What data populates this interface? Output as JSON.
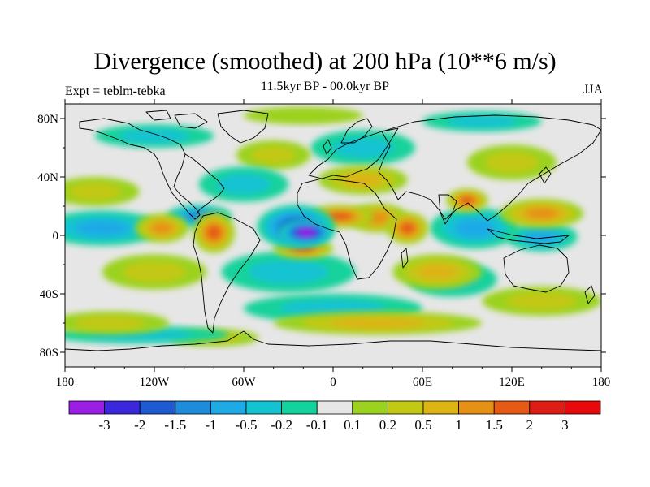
{
  "title": "Divergence (smoothed) at 200 hPa (10**6 m/s)",
  "subtitle_left": "Expt = teblm-tebka",
  "subtitle_center": "11.5kyr BP - 00.0kyr BP",
  "subtitle_right": "JJA",
  "chart_data": {
    "type": "heatmap",
    "title": "Divergence (smoothed) at 200 hPa (10**6 m/s)",
    "x_range": [
      -180,
      180
    ],
    "y_range": [
      -90,
      90
    ],
    "x_ticks": [
      {
        "value": -180,
        "label": "180"
      },
      {
        "value": -120,
        "label": "120W"
      },
      {
        "value": -60,
        "label": "60W"
      },
      {
        "value": 0,
        "label": "0"
      },
      {
        "value": 60,
        "label": "60E"
      },
      {
        "value": 120,
        "label": "120E"
      },
      {
        "value": 180,
        "label": "180"
      }
    ],
    "y_ticks": [
      {
        "value": 80,
        "label": "80N"
      },
      {
        "value": 40,
        "label": "40N"
      },
      {
        "value": 0,
        "label": "0"
      },
      {
        "value": -40,
        "label": "40S"
      },
      {
        "value": -80,
        "label": "80S"
      }
    ],
    "colorbar": {
      "labels": [
        "-3",
        "-2",
        "-1.5",
        "-1",
        "-0.5",
        "-0.2",
        "-0.1",
        "0.1",
        "0.2",
        "0.5",
        "1",
        "1.5",
        "2",
        "3"
      ],
      "colors": [
        "#9a1ee6",
        "#3c28dc",
        "#1e5ad2",
        "#1e8cdc",
        "#1eaae6",
        "#14c3d2",
        "#14d29b",
        "#e6e6e6",
        "#9bd21e",
        "#c3c814",
        "#dcb414",
        "#e69114",
        "#e65a14",
        "#dc1e14",
        "#e60a0a"
      ]
    },
    "features": [
      {
        "lon": -18,
        "lat": 2,
        "value": -3.2,
        "width": 18,
        "height": 9
      },
      {
        "lon": -25,
        "lat": 6,
        "value": -2.2,
        "width": 26,
        "height": 15
      },
      {
        "lon": -90,
        "lat": 13,
        "value": -1.3,
        "width": 22,
        "height": 8
      },
      {
        "lon": 95,
        "lat": 5,
        "value": -1.2,
        "width": 30,
        "height": 14
      },
      {
        "lon": 140,
        "lat": -1,
        "value": -1.1,
        "width": 24,
        "height": 10
      },
      {
        "lon": -155,
        "lat": 5,
        "value": -0.8,
        "width": 40,
        "height": 12
      },
      {
        "lon": -60,
        "lat": 35,
        "value": -0.6,
        "width": 30,
        "height": 12
      },
      {
        "lon": -30,
        "lat": -25,
        "value": -0.7,
        "width": 45,
        "height": 14
      },
      {
        "lon": 20,
        "lat": 60,
        "value": -0.5,
        "width": 35,
        "height": 12
      },
      {
        "lon": -120,
        "lat": 68,
        "value": -0.6,
        "width": 40,
        "height": 8
      },
      {
        "lon": 80,
        "lat": -30,
        "value": -0.5,
        "width": 30,
        "height": 12
      },
      {
        "lon": 0,
        "lat": -50,
        "value": -0.4,
        "width": 60,
        "height": 10
      },
      {
        "lon": -130,
        "lat": -68,
        "value": -0.5,
        "width": 60,
        "height": 6
      },
      {
        "lon": 100,
        "lat": 78,
        "value": -0.4,
        "width": 40,
        "height": 7
      },
      {
        "lon": -80,
        "lat": 2,
        "value": 2.4,
        "width": 14,
        "height": 14
      },
      {
        "lon": -115,
        "lat": 5,
        "value": 1.6,
        "width": 18,
        "height": 10
      },
      {
        "lon": 5,
        "lat": 13,
        "value": 1.8,
        "width": 22,
        "height": 8
      },
      {
        "lon": -20,
        "lat": -9,
        "value": 2.0,
        "width": 20,
        "height": 7
      },
      {
        "lon": 50,
        "lat": 5,
        "value": 2.2,
        "width": 14,
        "height": 11
      },
      {
        "lon": 90,
        "lat": 24,
        "value": 2.0,
        "width": 14,
        "height": 8
      },
      {
        "lon": 30,
        "lat": 12,
        "value": 1.3,
        "width": 20,
        "height": 10
      },
      {
        "lon": 140,
        "lat": 15,
        "value": 1.3,
        "width": 28,
        "height": 10
      },
      {
        "lon": 20,
        "lat": 38,
        "value": 1.0,
        "width": 30,
        "height": 10
      },
      {
        "lon": 70,
        "lat": -25,
        "value": 0.9,
        "width": 30,
        "height": 12
      },
      {
        "lon": -120,
        "lat": -25,
        "value": 0.6,
        "width": 35,
        "height": 12
      },
      {
        "lon": -160,
        "lat": 30,
        "value": 0.6,
        "width": 30,
        "height": 10
      },
      {
        "lon": 30,
        "lat": -60,
        "value": 0.8,
        "width": 70,
        "height": 8
      },
      {
        "lon": 140,
        "lat": -45,
        "value": 0.6,
        "width": 40,
        "height": 10
      },
      {
        "lon": -150,
        "lat": -60,
        "value": 0.5,
        "width": 40,
        "height": 8
      },
      {
        "lon": -40,
        "lat": 55,
        "value": 0.5,
        "width": 25,
        "height": 10
      },
      {
        "lon": 120,
        "lat": 50,
        "value": 0.4,
        "width": 30,
        "height": 12
      },
      {
        "lon": -80,
        "lat": -70,
        "value": 0.4,
        "width": 30,
        "height": 6
      },
      {
        "lon": -20,
        "lat": 82,
        "value": 0.3,
        "width": 40,
        "height": 6
      }
    ]
  }
}
